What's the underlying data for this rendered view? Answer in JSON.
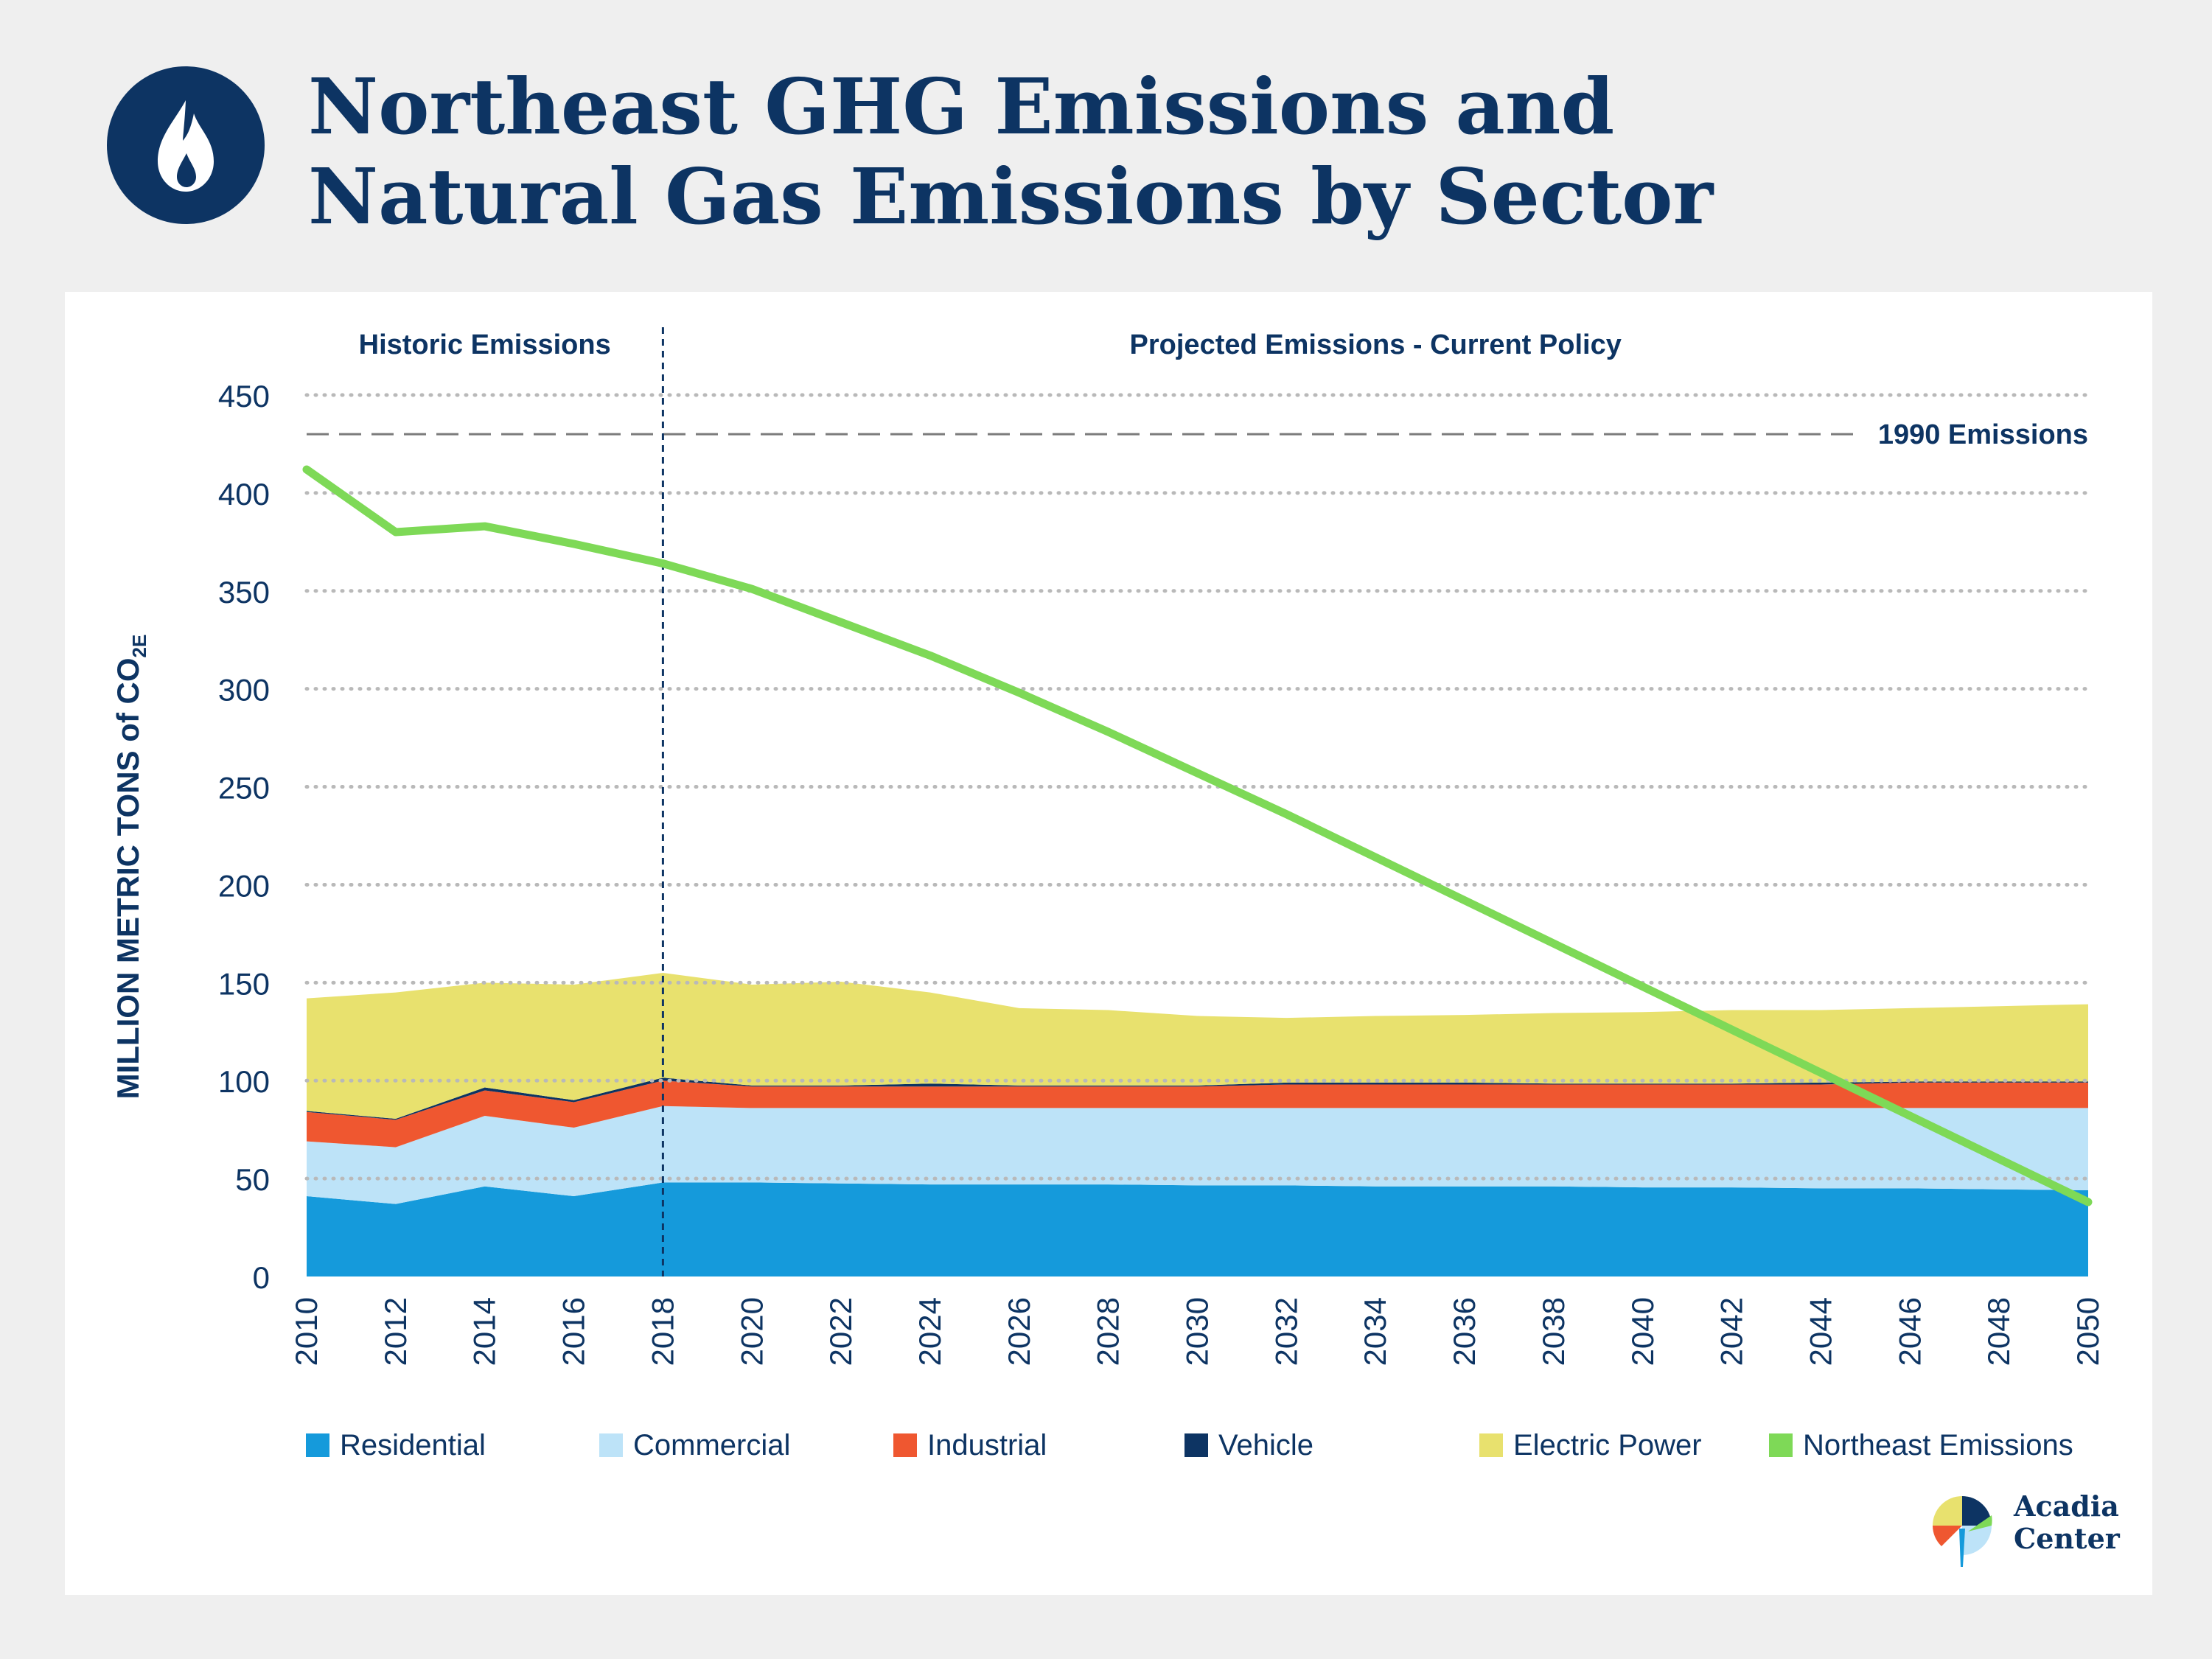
{
  "header": {
    "icon": "flame-icon",
    "title_line1": "Northeast GHG Emissions and",
    "title_line2": "Natural Gas Emissions by Sector"
  },
  "chart_data": {
    "type": "area",
    "ylabel": "MILLION METRIC TONS of CO",
    "ylabel_sub": "2E",
    "ylim": [
      0,
      450
    ],
    "yticks": [
      0,
      50,
      100,
      150,
      200,
      250,
      300,
      350,
      400,
      450
    ],
    "xticks": [
      2010,
      2012,
      2014,
      2016,
      2018,
      2020,
      2022,
      2024,
      2026,
      2028,
      2030,
      2032,
      2034,
      2036,
      2038,
      2040,
      2042,
      2044,
      2046,
      2048,
      2050
    ],
    "grid": "dotted horizontal",
    "legend_position": "bottom",
    "regions": [
      {
        "label": "Historic Emissions",
        "from": 2010,
        "to": 2018
      },
      {
        "label": "Projected Emissions - Current Policy",
        "from": 2018,
        "to": 2050
      }
    ],
    "divider_x": 2018,
    "reference_line": {
      "label": "1990 Emissions",
      "value": 430
    },
    "x": [
      2010,
      2012,
      2014,
      2016,
      2018,
      2020,
      2022,
      2024,
      2026,
      2028,
      2030,
      2032,
      2034,
      2036,
      2038,
      2040,
      2042,
      2044,
      2046,
      2048,
      2050
    ],
    "stacked_series": [
      {
        "name": "Residential",
        "color": "#159adb",
        "values": [
          41,
          37,
          46,
          41,
          48,
          48,
          47.5,
          47,
          47,
          47,
          46.5,
          46.5,
          46,
          46,
          46,
          45.5,
          45.5,
          45,
          45,
          44.5,
          44
        ]
      },
      {
        "name": "Commercial",
        "color": "#bde3f8",
        "values": [
          28,
          29,
          36,
          35,
          39,
          38,
          38.5,
          39,
          39,
          39,
          39.5,
          39.5,
          40,
          40,
          40,
          40.5,
          40.5,
          41,
          41,
          41.5,
          42
        ]
      },
      {
        "name": "Industrial",
        "color": "#ef5730",
        "values": [
          15,
          14,
          13,
          13,
          13,
          11,
          11,
          11,
          11,
          11,
          11,
          12,
          12,
          12,
          12,
          12,
          12,
          12,
          13,
          13,
          13
        ]
      },
      {
        "name": "Vehicle",
        "color": "#0d3463",
        "values": [
          0.5,
          0.5,
          1.5,
          1,
          1.5,
          0.5,
          0.5,
          1.5,
          0.5,
          0.5,
          0.5,
          1,
          1,
          1,
          0.5,
          0.5,
          0.5,
          1,
          0.5,
          0.5,
          0.5
        ]
      },
      {
        "name": "Electric Power",
        "color": "#e8e16e",
        "values": [
          57.5,
          64.5,
          53.5,
          59,
          53.5,
          51.5,
          53,
          46.5,
          39.5,
          38.5,
          35.5,
          33,
          34,
          34.5,
          36,
          36.5,
          37.5,
          37,
          37.5,
          38.5,
          39.5
        ]
      }
    ],
    "line_series": {
      "name": "Northeast Emissions",
      "color": "#7ed957",
      "values": [
        412,
        380,
        383,
        374,
        364,
        351,
        334,
        317,
        298,
        278,
        257,
        236,
        214,
        192,
        170,
        148,
        126,
        104,
        82,
        60,
        38
      ]
    }
  },
  "brand": {
    "name_line1": "Acadia",
    "name_line2": "Center",
    "logo_icon": "acadia-center-logo-icon"
  }
}
